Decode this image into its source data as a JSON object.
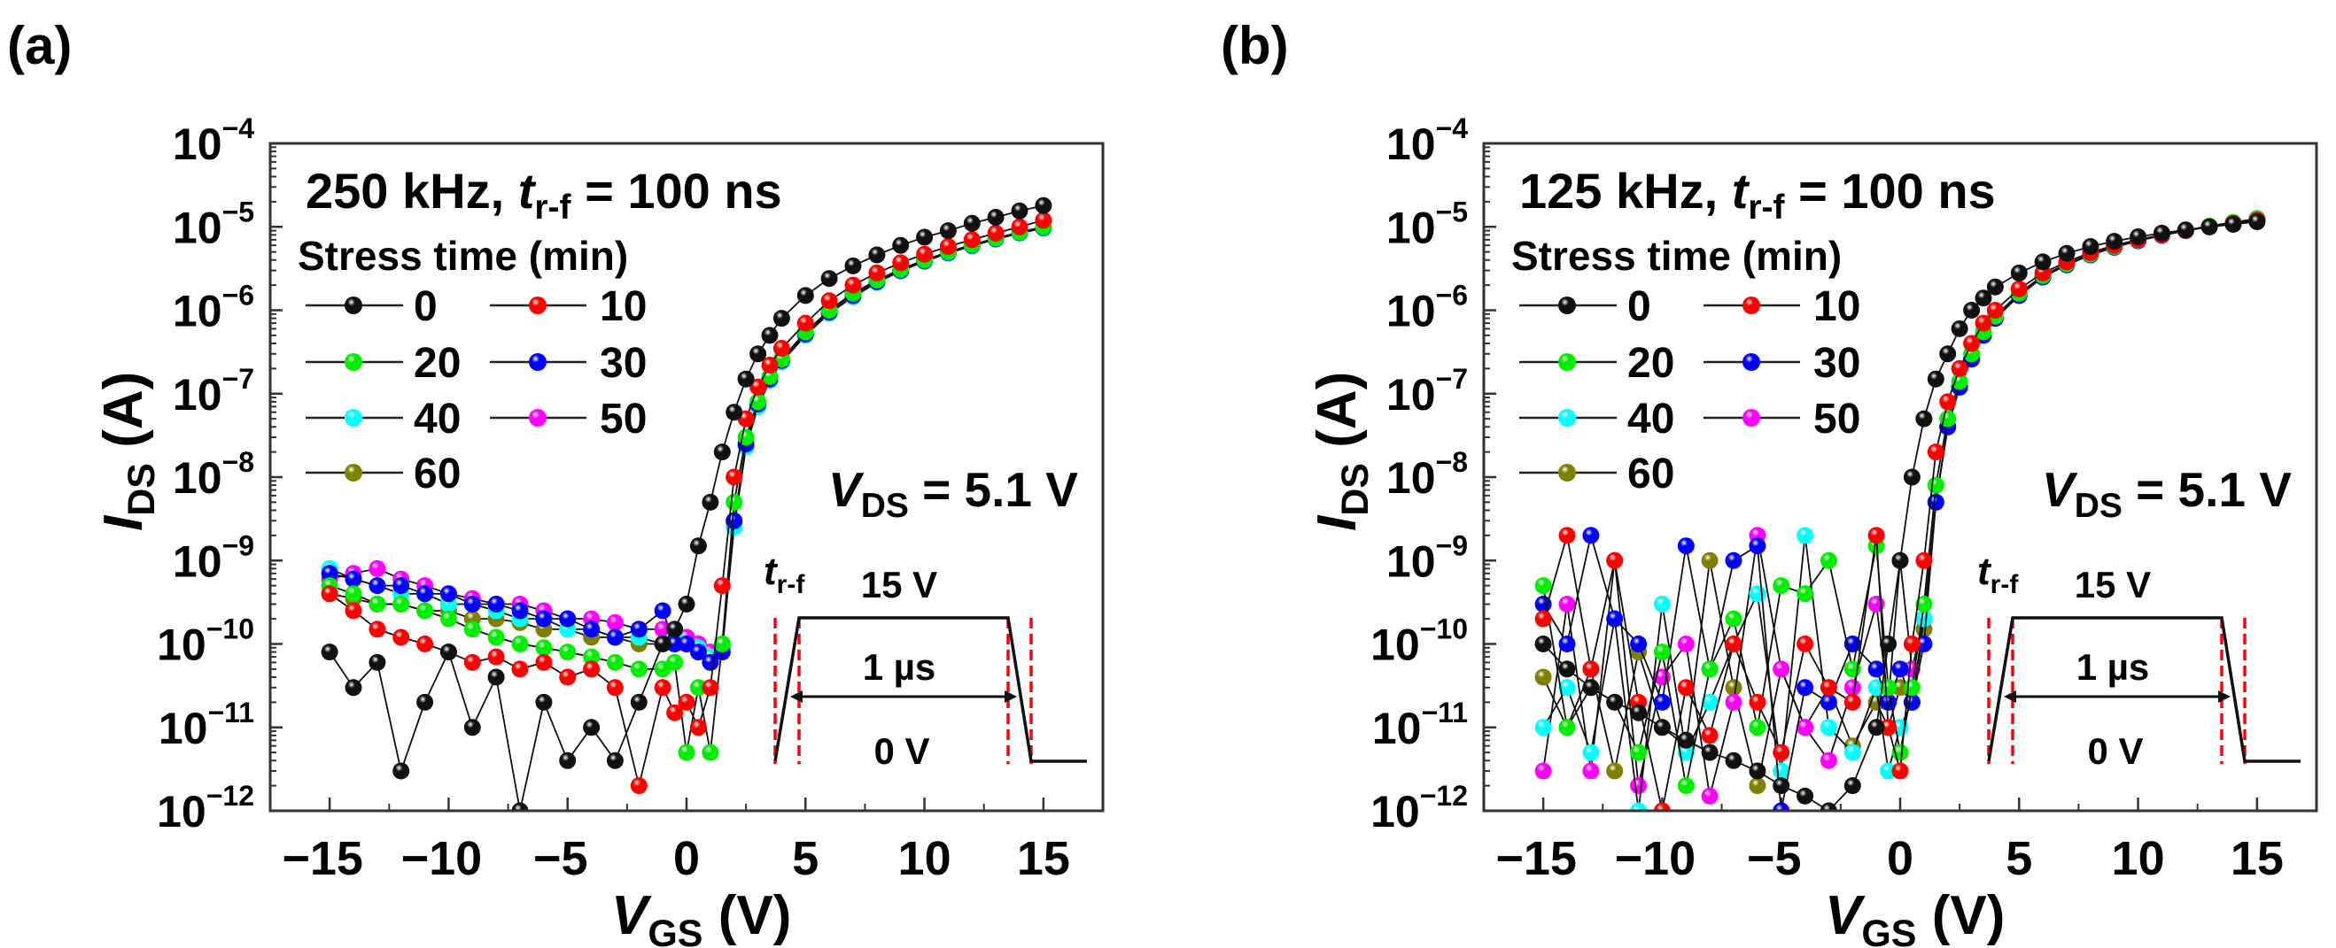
{
  "chart_data": [
    {
      "type": "scatter",
      "panel_label": "(a)",
      "title": {
        "pre": "250 kHz, ",
        "sym": "t",
        "sub": "r-f",
        "post": " = 100 ns"
      },
      "legend_title": "Stress time (min)",
      "annotation_vds": {
        "sym": "V",
        "sub": "DS",
        "post": " = 5.1 V"
      },
      "inset": {
        "trf_sym": "t",
        "trf_sub": "r-f",
        "high": "15 V",
        "width": "1 µs",
        "low": "0 V"
      },
      "xlabel": {
        "sym": "V",
        "sub": "GS",
        "post": " (V)"
      },
      "ylabel": {
        "sym": "I",
        "sub": "DS",
        "post": " (A)"
      },
      "xlim": [
        -17.5,
        17.5
      ],
      "ylim": [
        1e-12,
        0.0001
      ],
      "yscale": "log",
      "x_ticks": [
        -15,
        -10,
        -5,
        0,
        5,
        10,
        15
      ],
      "x_tick_labels": [
        "−15",
        "−10",
        "−5",
        "0",
        "5",
        "10",
        "15"
      ],
      "y_ticks_exp": [
        -4,
        -5,
        -6,
        -7,
        -8,
        -9,
        -10,
        -11,
        -12
      ],
      "y_tick_labels": [
        {
          "base": "10",
          "exp": "−4"
        },
        {
          "base": "10",
          "exp": "−5"
        },
        {
          "base": "10",
          "exp": "−6"
        },
        {
          "base": "10",
          "exp": "−7"
        },
        {
          "base": "10",
          "exp": "−8"
        },
        {
          "base": "10",
          "exp": "−9"
        },
        {
          "base": "10",
          "exp": "−10"
        },
        {
          "base": "10",
          "exp": "−11"
        },
        {
          "base": "10",
          "exp": "−12"
        }
      ],
      "legend_position": "top-left",
      "x": [
        -15,
        -14,
        -13,
        -12,
        -11,
        -10,
        -9,
        -8,
        -7,
        -6,
        -5,
        -4,
        -3,
        -2,
        -1,
        -0.5,
        0,
        0.5,
        1,
        1.5,
        2,
        2.5,
        3,
        3.5,
        4,
        5,
        6,
        7,
        8,
        9,
        10,
        11,
        12,
        13,
        14,
        15
      ],
      "series": [
        {
          "name": "0",
          "color": "#111111",
          "values": [
            8e-11,
            3e-11,
            6e-11,
            3e-12,
            2e-11,
            8e-11,
            1e-11,
            4e-11,
            1e-12,
            2e-11,
            4e-12,
            1e-11,
            4e-12,
            2e-11,
            1e-10,
            1.5e-10,
            3e-10,
            1.5e-09,
            5e-09,
            2e-08,
            6e-08,
            1.5e-07,
            3e-07,
            5e-07,
            8e-07,
            1.5e-06,
            2.4e-06,
            3.4e-06,
            4.6e-06,
            6e-06,
            7.5e-06,
            9e-06,
            1.1e-05,
            1.3e-05,
            1.55e-05,
            1.8e-05
          ]
        },
        {
          "name": "10",
          "color": "#ff0000",
          "values": [
            4e-10,
            2.5e-10,
            1.5e-10,
            1.2e-10,
            1e-10,
            8e-11,
            6e-11,
            7e-11,
            5e-11,
            6e-11,
            4e-11,
            5e-11,
            3e-11,
            2e-12,
            3e-11,
            1.5e-11,
            2e-11,
            1e-11,
            3e-11,
            5e-10,
            1e-08,
            5e-08,
            1.2e-07,
            2.2e-07,
            3.5e-07,
            7e-07,
            1.3e-06,
            2e-06,
            2.8e-06,
            3.7e-06,
            4.7e-06,
            5.8e-06,
            7e-06,
            8.4e-06,
            1e-05,
            1.2e-05
          ]
        },
        {
          "name": "20",
          "color": "#00ee00",
          "values": [
            5e-10,
            4e-10,
            3e-10,
            3e-10,
            2.5e-10,
            2e-10,
            1.5e-10,
            1.2e-10,
            1e-10,
            9e-11,
            8e-11,
            7e-11,
            6e-11,
            5e-11,
            5e-11,
            6e-11,
            5e-12,
            3e-11,
            5e-12,
            1e-10,
            5e-09,
            3e-08,
            8e-08,
            1.6e-07,
            2.6e-07,
            5.5e-07,
            1e-06,
            1.6e-06,
            2.3e-06,
            3.1e-06,
            4e-06,
            5e-06,
            6.1e-06,
            7.3e-06,
            8.6e-06,
            1e-05
          ]
        },
        {
          "name": "30",
          "color": "#0000ff",
          "values": [
            7e-10,
            6e-10,
            5e-10,
            5e-10,
            4e-10,
            4e-10,
            3e-10,
            3e-10,
            2.5e-10,
            2e-10,
            2e-10,
            1.5e-10,
            1.2e-10,
            1.5e-10,
            2.5e-10,
            1e-10,
            1e-10,
            8e-11,
            6e-11,
            8e-11,
            3e-09,
            2.5e-08,
            7.5e-08,
            1.5e-07,
            2.5e-07,
            5.2e-07,
            9.5e-07,
            1.5e-06,
            2.2e-06,
            3e-06,
            3.9e-06,
            4.9e-06,
            6e-06,
            7.2e-06,
            8.5e-06,
            9.8e-06
          ]
        },
        {
          "name": "40",
          "color": "#00ffff",
          "values": [
            8e-10,
            6e-10,
            5e-10,
            4e-10,
            4e-10,
            3e-10,
            3e-10,
            2.5e-10,
            2e-10,
            2e-10,
            1.5e-10,
            1.5e-10,
            1.2e-10,
            1.2e-10,
            1e-10,
            1.2e-10,
            1e-10,
            9e-11,
            7e-11,
            9e-11,
            2.5e-09,
            2.3e-08,
            7e-08,
            1.45e-07,
            2.4e-07,
            5e-07,
            9.2e-07,
            1.45e-06,
            2.15e-06,
            2.95e-06,
            3.85e-06,
            4.85e-06,
            5.9e-06,
            7.1e-06,
            8.4e-06,
            9.6e-06
          ]
        },
        {
          "name": "50",
          "color": "#ff00ff",
          "values": [
            6e-10,
            7e-10,
            8e-10,
            6e-10,
            5e-10,
            4e-10,
            3.5e-10,
            3e-10,
            3e-10,
            2.5e-10,
            2e-10,
            2e-10,
            1.8e-10,
            1.5e-10,
            1.5e-10,
            1.5e-10,
            1.2e-10,
            1e-10,
            8e-11,
            1e-10,
            2.5e-09,
            2.3e-08,
            7e-08,
            1.45e-07,
            2.4e-07,
            5e-07,
            9.2e-07,
            1.45e-06,
            2.15e-06,
            2.95e-06,
            3.85e-06,
            4.85e-06,
            5.9e-06,
            7.1e-06,
            8.4e-06,
            9.7e-06
          ]
        },
        {
          "name": "60",
          "color": "#808000",
          "values": [
            4e-10,
            3.5e-10,
            3e-10,
            3e-10,
            2.5e-10,
            2.5e-10,
            2e-10,
            2e-10,
            1.8e-10,
            1.5e-10,
            1.5e-10,
            1.2e-10,
            1.2e-10,
            1e-10,
            1e-10,
            1.2e-10,
            1e-10,
            9e-11,
            7e-11,
            9e-11,
            2.8e-09,
            2.4e-08,
            7.2e-08,
            1.5e-07,
            2.45e-07,
            5.1e-07,
            9.3e-07,
            1.5e-06,
            2.2e-06,
            3e-06,
            3.9e-06,
            4.9e-06,
            6e-06,
            7.2e-06,
            8.5e-06,
            9.8e-06
          ]
        }
      ]
    },
    {
      "type": "scatter",
      "panel_label": "(b)",
      "title": {
        "pre": "125 kHz, ",
        "sym": "t",
        "sub": "r-f",
        "post": " = 100 ns"
      },
      "legend_title": "Stress time (min)",
      "annotation_vds": {
        "sym": "V",
        "sub": "DS",
        "post": " = 5.1 V"
      },
      "inset": {
        "trf_sym": "t",
        "trf_sub": "r-f",
        "high": "15 V",
        "width": "1 µs",
        "low": "0 V"
      },
      "xlabel": {
        "sym": "V",
        "sub": "GS",
        "post": " (V)"
      },
      "ylabel": {
        "sym": "I",
        "sub": "DS",
        "post": " (A)"
      },
      "xlim": [
        -17.5,
        17.5
      ],
      "ylim": [
        1e-12,
        0.0001
      ],
      "yscale": "log",
      "x_ticks": [
        -15,
        -10,
        -5,
        0,
        5,
        10,
        15
      ],
      "x_tick_labels": [
        "−15",
        "−10",
        "−5",
        "0",
        "5",
        "10",
        "15"
      ],
      "y_ticks_exp": [
        -4,
        -5,
        -6,
        -7,
        -8,
        -9,
        -10,
        -11,
        -12
      ],
      "y_tick_labels": [
        {
          "base": "10",
          "exp": "−4"
        },
        {
          "base": "10",
          "exp": "−5"
        },
        {
          "base": "10",
          "exp": "−6"
        },
        {
          "base": "10",
          "exp": "−7"
        },
        {
          "base": "10",
          "exp": "−8"
        },
        {
          "base": "10",
          "exp": "−9"
        },
        {
          "base": "10",
          "exp": "−10"
        },
        {
          "base": "10",
          "exp": "−11"
        },
        {
          "base": "10",
          "exp": "−12"
        }
      ],
      "legend_position": "top-left",
      "x": [
        -15,
        -14,
        -13,
        -12,
        -11,
        -10,
        -9,
        -8,
        -7,
        -6,
        -5,
        -4,
        -3,
        -2,
        -1,
        -0.5,
        0,
        0.5,
        1,
        1.5,
        2,
        2.5,
        3,
        3.5,
        4,
        5,
        6,
        7,
        8,
        9,
        10,
        11,
        12,
        13,
        14,
        15
      ],
      "series": [
        {
          "name": "0",
          "color": "#111111",
          "values": [
            1e-10,
            5e-11,
            3e-11,
            2e-11,
            1.5e-11,
            1e-11,
            7e-12,
            5e-12,
            4e-12,
            3e-12,
            2e-12,
            1.5e-12,
            1e-12,
            2e-12,
            1e-11,
            1e-10,
            1e-09,
            1e-08,
            5e-08,
            1.5e-07,
            3e-07,
            6e-07,
            1e-06,
            1.4e-06,
            1.9e-06,
            2.8e-06,
            3.8e-06,
            4.8e-06,
            5.8e-06,
            6.7e-06,
            7.6e-06,
            8.4e-06,
            9.2e-06,
            1e-05,
            1.07e-05,
            1.15e-05
          ]
        },
        {
          "name": "10",
          "color": "#ff0000",
          "values": [
            2e-10,
            2e-09,
            5e-11,
            1e-09,
            2e-11,
            1e-12,
            3e-11,
            8e-12,
            1e-10,
            2e-11,
            5e-12,
            1e-10,
            3e-11,
            2e-11,
            2e-09,
            1e-11,
            3e-12,
            1e-10,
            1e-09,
            2e-08,
            8e-08,
            2e-07,
            4e-07,
            7e-07,
            1e-06,
            1.8e-06,
            2.8e-06,
            3.8e-06,
            4.9e-06,
            6e-06,
            7e-06,
            8e-06,
            9e-06,
            1e-05,
            1.1e-05,
            1.2e-05
          ]
        },
        {
          "name": "20",
          "color": "#00ee00",
          "values": [
            5e-10,
            1e-11,
            3e-11,
            2e-11,
            5e-12,
            8e-11,
            2e-12,
            5e-11,
            2e-10,
            1e-11,
            5e-10,
            4e-10,
            1e-09,
            5e-11,
            1.5e-09,
            3e-11,
            5e-12,
            3e-11,
            3e-10,
            8e-09,
            5e-08,
            1.4e-07,
            3e-07,
            5.5e-07,
            8.5e-07,
            1.6e-06,
            2.6e-06,
            3.6e-06,
            4.7e-06,
            5.8e-06,
            6.9e-06,
            8e-06,
            9.1e-06,
            1.02e-05,
            1.13e-05,
            1.25e-05
          ]
        },
        {
          "name": "30",
          "color": "#0000ff",
          "values": [
            3e-10,
            1e-10,
            2e-09,
            2e-10,
            1e-10,
            2e-11,
            1.5e-09,
            5e-11,
            1e-09,
            1.5e-09,
            1e-12,
            3e-11,
            2e-11,
            1e-10,
            5e-11,
            2e-11,
            5e-11,
            2e-11,
            1e-10,
            5e-09,
            4e-08,
            1.2e-07,
            2.6e-07,
            5e-07,
            8e-07,
            1.5e-06,
            2.5e-06,
            3.5e-06,
            4.6e-06,
            5.7e-06,
            6.8e-06,
            7.9e-06,
            9e-06,
            1.01e-05,
            1.12e-05,
            1.25e-05
          ]
        },
        {
          "name": "40",
          "color": "#00ffff",
          "values": [
            1e-11,
            3e-11,
            5e-12,
            2e-10,
            1e-12,
            3e-10,
            5e-12,
            2e-11,
            1e-10,
            4e-10,
            3e-12,
            2e-09,
            1e-11,
            5e-12,
            3e-11,
            3e-12,
            1e-11,
            2e-11,
            2e-10,
            5e-09,
            4e-08,
            1.2e-07,
            2.6e-07,
            5e-07,
            8e-07,
            1.5e-06,
            2.5e-06,
            3.5e-06,
            4.6e-06,
            5.7e-06,
            6.8e-06,
            7.9e-06,
            9e-06,
            1.01e-05,
            1.12e-05,
            1.25e-05
          ]
        },
        {
          "name": "50",
          "color": "#ff00ff",
          "values": [
            3e-12,
            3e-10,
            3e-12,
            1e-09,
            2e-12,
            4e-11,
            1e-10,
            1.5e-12,
            2e-11,
            2e-09,
            5e-11,
            1e-11,
            4e-12,
            3e-11,
            3e-10,
            2e-11,
            1e-09,
            5e-11,
            2e-10,
            5e-09,
            4e-08,
            1.2e-07,
            2.6e-07,
            5e-07,
            8e-07,
            1.5e-06,
            2.5e-06,
            3.5e-06,
            4.6e-06,
            5.7e-06,
            6.8e-06,
            7.9e-06,
            9e-06,
            1.01e-05,
            1.12e-05,
            1.25e-05
          ]
        },
        {
          "name": "60",
          "color": "#808000",
          "values": [
            4e-11,
            1e-11,
            5e-11,
            3e-12,
            8e-11,
            1e-11,
            6e-12,
            1e-09,
            3e-11,
            2e-12,
            5e-11,
            1e-11,
            3e-11,
            6e-12,
            2e-11,
            1e-11,
            3e-11,
            2e-11,
            1.5e-10,
            5e-09,
            4e-08,
            1.2e-07,
            2.6e-07,
            5e-07,
            8e-07,
            1.5e-06,
            2.5e-06,
            3.5e-06,
            4.6e-06,
            5.7e-06,
            6.8e-06,
            7.9e-06,
            9e-06,
            1.01e-05,
            1.12e-05,
            1.25e-05
          ]
        }
      ]
    }
  ]
}
